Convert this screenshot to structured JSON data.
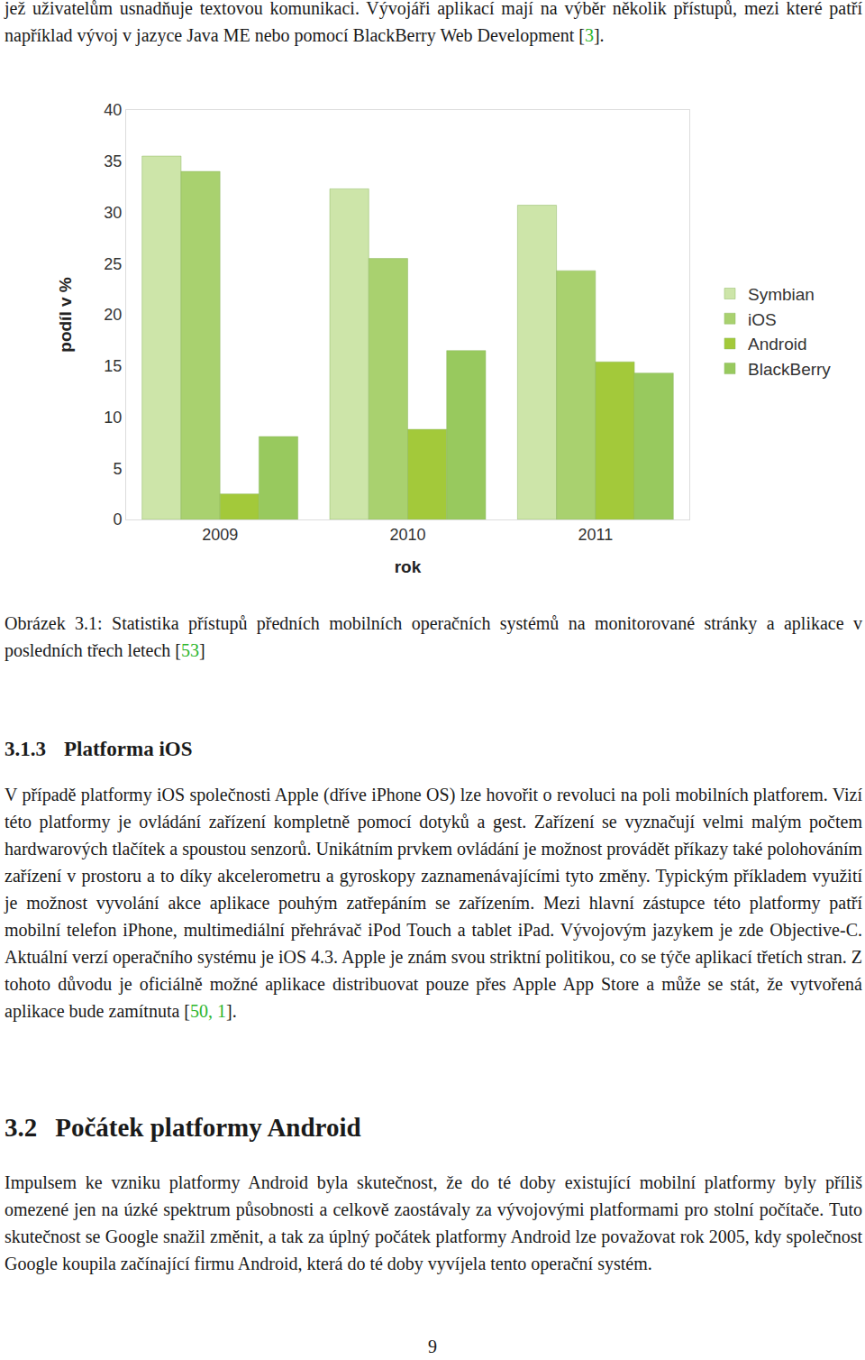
{
  "intro_text": "jež uživatelům usnadňuje textovou komunikaci. Vývojáři aplikací mají na výběr několik přístupů, mezi které patří například vývoj v jazyce Java ME nebo pomocí BlackBerry Web Development [3].",
  "chart_data": {
    "type": "bar",
    "x_label": "rok",
    "y_label": "podíl v %",
    "categories": [
      "2009",
      "2010",
      "2011"
    ],
    "series": [
      {
        "name": "Symbian",
        "color": "#cde5a9",
        "values": [
          35.5,
          32.3,
          30.7
        ]
      },
      {
        "name": "iOS",
        "color": "#a9d16f",
        "values": [
          34.0,
          25.5,
          24.3
        ]
      },
      {
        "name": "Android",
        "color": "#a3c93a",
        "values": [
          2.5,
          8.8,
          15.4
        ]
      },
      {
        "name": "BlackBerry",
        "color": "#98c95e",
        "values": [
          8.1,
          16.5,
          14.3
        ]
      }
    ],
    "ylim": [
      0,
      40
    ],
    "yticks": [
      0,
      5,
      10,
      15,
      20,
      25,
      30,
      35,
      40
    ],
    "grid": false,
    "legend": "right"
  },
  "caption": "Obrázek 3.1: Statistika přístupů předních mobilních operačních systémů na monitorované stránky a aplikace v posledních třech letech [53]",
  "sections": [
    {
      "number": "3.1.3",
      "title": "Platforma iOS",
      "level": 3,
      "text": "V případě platformy iOS společnosti Apple (dříve iPhone OS) lze hovořit o revoluci na poli mobilních platforem. Vizí této platformy je ovládání zařízení kompletně pomocí dotyků a gest. Zařízení se vyznačují velmi malým počtem hardwarových tlačítek a spoustou senzorů. Unikátním prvkem ovládání je možnost provádět příkazy také polohováním zařízení v prostoru a to díky akcelerometru a gyroskopy zaznamenávajícími tyto změny. Typickým příkladem využití je možnost vyvolání akce aplikace pouhým zatřepáním se zařízením. Mezi hlavní zástupce této platformy patří mobilní telefon iPhone, multimediální přehrávač iPod Touch a tablet iPad. Vývojovým jazykem je zde Objective-C. Aktuální verzí operačního systému je iOS 4.3. Apple je znám svou striktní politikou, co se týče aplikací třetích stran. Z tohoto důvodu je oficiálně možné aplikace distribuovat pouze přes Apple App Store a může se stát, že vytvořená aplikace bude zamítnuta [50, 1]."
    },
    {
      "number": "3.2",
      "title": "Počátek platformy Android",
      "level": 2,
      "text": "Impulsem ke vzniku platformy Android byla skutečnost, že do té doby existující mobilní platformy byly příliš omezené jen na úzké spektrum působnosti a celkově zaostávaly za vývojovými platformami pro stolní počítače. Tuto skutečnost se Google snažil změnit, a tak za úplný počátek platformy Android lze považovat rok 2005, kdy společnost Google koupila začínající firmu Android, která do té doby vyvíjela tento operační systém."
    }
  ],
  "page_number": "9"
}
